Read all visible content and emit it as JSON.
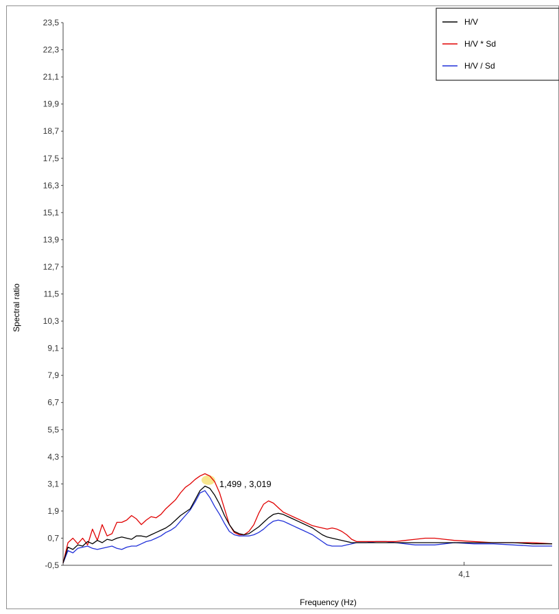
{
  "chart_data": {
    "type": "line",
    "xlabel": "Frequency (Hz)",
    "ylabel": "Spectral ratio",
    "xlim": [
      0,
      5
    ],
    "ylim": [
      -0.5,
      23.5
    ],
    "y_ticks": [
      "23,5",
      "22,3",
      "21,1",
      "19,9",
      "18,7",
      "17,5",
      "16,3",
      "15,1",
      "13,9",
      "12,7",
      "11,5",
      "10,3",
      "9,1",
      "7,9",
      "6,7",
      "5,5",
      "4,3",
      "3,1",
      "1,9",
      "0,7",
      "-0,5"
    ],
    "y_tick_values": [
      23.5,
      22.3,
      21.1,
      19.9,
      18.7,
      17.5,
      16.3,
      15.1,
      13.9,
      12.7,
      11.5,
      10.3,
      9.1,
      7.9,
      6.7,
      5.5,
      4.3,
      3.1,
      1.9,
      0.7,
      -0.5
    ],
    "x_ticks": [
      "4,1"
    ],
    "x_tick_values": [
      4.1
    ],
    "legend_position": "top-right",
    "peak": {
      "x": 1.499,
      "y": 3.019,
      "label": "1,499 , 3,019",
      "highlight_color": "#f7e27a"
    },
    "series": [
      {
        "name": "H/V",
        "color": "#000000",
        "x": [
          0.0,
          0.05,
          0.1,
          0.15,
          0.2,
          0.25,
          0.3,
          0.35,
          0.4,
          0.45,
          0.5,
          0.55,
          0.6,
          0.65,
          0.7,
          0.75,
          0.8,
          0.85,
          0.9,
          0.95,
          1.0,
          1.05,
          1.1,
          1.15,
          1.2,
          1.25,
          1.3,
          1.35,
          1.4,
          1.45,
          1.5,
          1.55,
          1.6,
          1.65,
          1.7,
          1.75,
          1.8,
          1.85,
          1.9,
          1.95,
          2.0,
          2.05,
          2.1,
          2.15,
          2.2,
          2.25,
          2.3,
          2.35,
          2.4,
          2.45,
          2.5,
          2.55,
          2.6,
          2.65,
          2.7,
          2.75,
          2.8,
          2.85,
          2.9,
          2.95,
          3.0,
          3.1,
          3.2,
          3.3,
          3.4,
          3.5,
          3.6,
          3.7,
          3.8,
          3.9,
          4.0,
          4.2,
          4.4,
          4.6,
          4.8,
          5.0
        ],
        "y": [
          -0.4,
          0.3,
          0.2,
          0.4,
          0.35,
          0.55,
          0.45,
          0.6,
          0.5,
          0.65,
          0.6,
          0.7,
          0.75,
          0.7,
          0.65,
          0.8,
          0.8,
          0.75,
          0.85,
          0.95,
          1.05,
          1.15,
          1.3,
          1.5,
          1.7,
          1.85,
          2.0,
          2.4,
          2.8,
          3.0,
          2.9,
          2.6,
          2.2,
          1.7,
          1.3,
          1.0,
          0.9,
          0.85,
          0.9,
          1.05,
          1.2,
          1.4,
          1.6,
          1.75,
          1.8,
          1.75,
          1.65,
          1.55,
          1.45,
          1.35,
          1.25,
          1.15,
          1.0,
          0.85,
          0.75,
          0.7,
          0.65,
          0.6,
          0.55,
          0.5,
          0.5,
          0.5,
          0.5,
          0.5,
          0.5,
          0.5,
          0.5,
          0.5,
          0.5,
          0.5,
          0.5,
          0.5,
          0.5,
          0.5,
          0.45,
          0.45
        ]
      },
      {
        "name": "H/V * Sd",
        "color": "#e00000",
        "x": [
          0.0,
          0.05,
          0.1,
          0.15,
          0.2,
          0.25,
          0.3,
          0.35,
          0.4,
          0.45,
          0.5,
          0.55,
          0.6,
          0.65,
          0.7,
          0.75,
          0.8,
          0.85,
          0.9,
          0.95,
          1.0,
          1.05,
          1.1,
          1.15,
          1.2,
          1.25,
          1.3,
          1.35,
          1.4,
          1.45,
          1.5,
          1.55,
          1.6,
          1.65,
          1.7,
          1.75,
          1.8,
          1.85,
          1.9,
          1.95,
          2.0,
          2.05,
          2.1,
          2.15,
          2.2,
          2.25,
          2.3,
          2.35,
          2.4,
          2.45,
          2.5,
          2.55,
          2.6,
          2.65,
          2.7,
          2.75,
          2.8,
          2.85,
          2.9,
          2.95,
          3.0,
          3.1,
          3.2,
          3.3,
          3.4,
          3.5,
          3.6,
          3.7,
          3.8,
          3.9,
          4.0,
          4.2,
          4.4,
          4.6,
          4.8,
          5.0
        ],
        "y": [
          -0.4,
          0.5,
          0.7,
          0.45,
          0.7,
          0.4,
          1.1,
          0.6,
          1.3,
          0.8,
          0.9,
          1.4,
          1.4,
          1.5,
          1.7,
          1.55,
          1.3,
          1.5,
          1.65,
          1.6,
          1.75,
          2.0,
          2.2,
          2.4,
          2.7,
          2.95,
          3.1,
          3.3,
          3.45,
          3.55,
          3.45,
          3.2,
          2.7,
          2.0,
          1.3,
          0.95,
          0.85,
          0.85,
          1.0,
          1.3,
          1.8,
          2.2,
          2.35,
          2.25,
          2.05,
          1.85,
          1.75,
          1.65,
          1.55,
          1.45,
          1.35,
          1.25,
          1.2,
          1.15,
          1.1,
          1.15,
          1.1,
          1.0,
          0.85,
          0.65,
          0.55,
          0.55,
          0.55,
          0.55,
          0.55,
          0.6,
          0.65,
          0.7,
          0.7,
          0.65,
          0.6,
          0.55,
          0.5,
          0.5,
          0.5,
          0.45
        ]
      },
      {
        "name": "H/V / Sd",
        "color": "#1f2fd8",
        "x": [
          0.0,
          0.05,
          0.1,
          0.15,
          0.2,
          0.25,
          0.3,
          0.35,
          0.4,
          0.45,
          0.5,
          0.55,
          0.6,
          0.65,
          0.7,
          0.75,
          0.8,
          0.85,
          0.9,
          0.95,
          1.0,
          1.05,
          1.1,
          1.15,
          1.2,
          1.25,
          1.3,
          1.35,
          1.4,
          1.45,
          1.5,
          1.55,
          1.6,
          1.65,
          1.7,
          1.75,
          1.8,
          1.85,
          1.9,
          1.95,
          2.0,
          2.05,
          2.1,
          2.15,
          2.2,
          2.25,
          2.3,
          2.35,
          2.4,
          2.45,
          2.5,
          2.55,
          2.6,
          2.65,
          2.7,
          2.75,
          2.8,
          2.85,
          2.9,
          2.95,
          3.0,
          3.1,
          3.2,
          3.3,
          3.4,
          3.5,
          3.6,
          3.7,
          3.8,
          3.9,
          4.0,
          4.2,
          4.4,
          4.6,
          4.8,
          5.0
        ],
        "y": [
          -0.4,
          0.15,
          0.05,
          0.25,
          0.3,
          0.35,
          0.25,
          0.2,
          0.25,
          0.3,
          0.35,
          0.25,
          0.2,
          0.3,
          0.35,
          0.35,
          0.45,
          0.55,
          0.6,
          0.7,
          0.8,
          0.95,
          1.05,
          1.2,
          1.45,
          1.7,
          1.95,
          2.3,
          2.7,
          2.8,
          2.5,
          2.1,
          1.75,
          1.35,
          1.0,
          0.85,
          0.8,
          0.8,
          0.8,
          0.85,
          0.95,
          1.1,
          1.3,
          1.45,
          1.5,
          1.45,
          1.35,
          1.25,
          1.15,
          1.05,
          0.95,
          0.85,
          0.7,
          0.55,
          0.4,
          0.35,
          0.35,
          0.35,
          0.4,
          0.45,
          0.5,
          0.5,
          0.55,
          0.55,
          0.5,
          0.45,
          0.4,
          0.4,
          0.4,
          0.45,
          0.5,
          0.45,
          0.45,
          0.4,
          0.35,
          0.35
        ]
      }
    ]
  }
}
